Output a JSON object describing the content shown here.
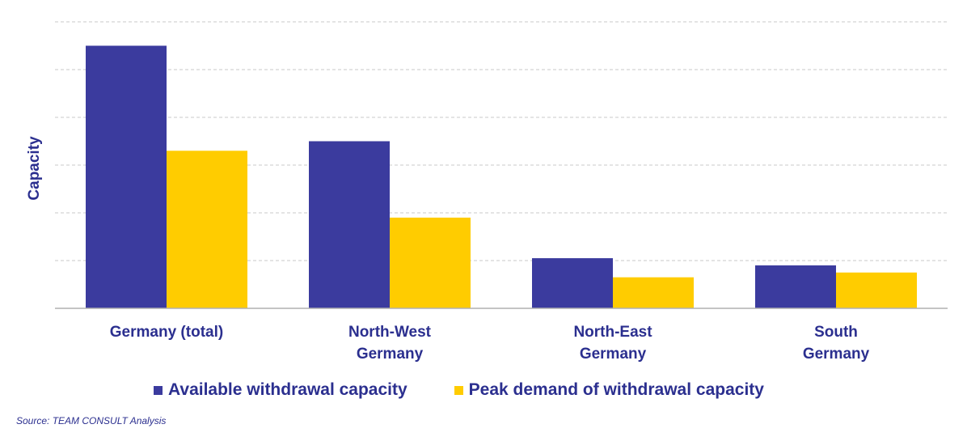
{
  "chart_data": {
    "type": "bar",
    "title": "",
    "xlabel": "",
    "ylabel": "Capacity",
    "categories": [
      [
        "Germany (total)"
      ],
      [
        "North-West",
        "Germany"
      ],
      [
        "North-East",
        "Germany"
      ],
      [
        "South",
        "Germany"
      ]
    ],
    "series": [
      {
        "name": "Available withdrawal capacity",
        "color": "#3b3b9e",
        "values": [
          55,
          35,
          10.5,
          9
        ]
      },
      {
        "name": "Peak demand of withdrawal capacity",
        "color": "#ffcc00",
        "values": [
          33,
          19,
          6.5,
          7.5
        ]
      }
    ],
    "ylim": [
      0,
      60
    ],
    "yticks": [
      0,
      10,
      20,
      30,
      40,
      50,
      60
    ],
    "show_tick_labels": false,
    "grid": true,
    "legend": "bottom"
  },
  "source": "Source:  TEAM CONSULT  Analysis"
}
